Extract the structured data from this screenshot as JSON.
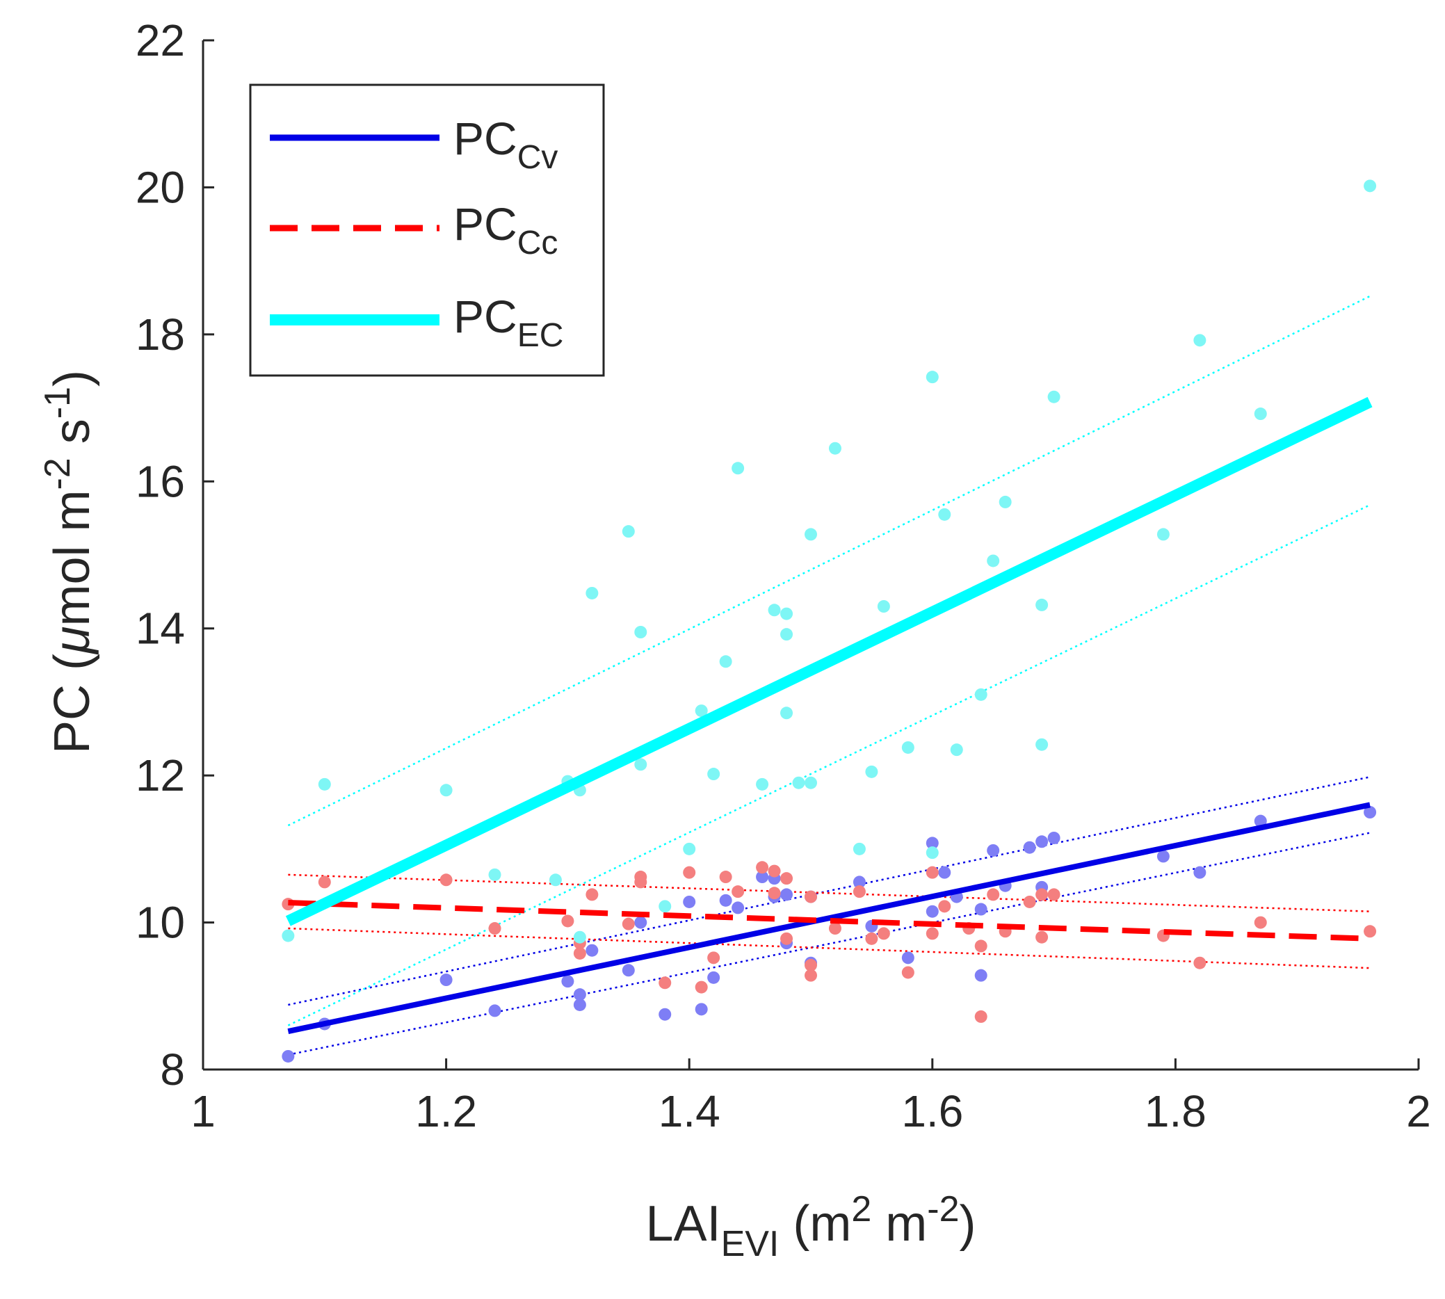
{
  "chart_data": {
    "type": "scatter",
    "xlabel": {
      "main": "LAI",
      "sub": "EVI",
      "rest_a": " (m",
      "sup1": "2",
      "rest_b": " m",
      "sup2": "-2",
      "rest_c": ")"
    },
    "ylabel": {
      "main": "PC (",
      "mu": "μ",
      "rest_a": "mol m",
      "sup1": "-2",
      "rest_b": " s",
      "sup2": "-1",
      "rest_c": ")"
    },
    "xlim": [
      1,
      2
    ],
    "ylim": [
      8,
      22
    ],
    "xticks": [
      "1",
      "1.2",
      "1.4",
      "1.6",
      "1.8",
      "2"
    ],
    "yticks": [
      "8",
      "10",
      "12",
      "14",
      "16",
      "18",
      "20",
      "22"
    ],
    "grid": false,
    "legend_position": "top-left",
    "series": [
      {
        "name": "PC",
        "sub": "Cv",
        "color": "#0000E6",
        "point_color": "#7E7EF5",
        "line_style": "solid",
        "points": [
          [
            1.07,
            8.18
          ],
          [
            1.1,
            8.62
          ],
          [
            1.2,
            9.22
          ],
          [
            1.24,
            8.8
          ],
          [
            1.3,
            9.2
          ],
          [
            1.31,
            9.02
          ],
          [
            1.31,
            8.88
          ],
          [
            1.32,
            9.62
          ],
          [
            1.35,
            9.35
          ],
          [
            1.36,
            10.0
          ],
          [
            1.38,
            8.75
          ],
          [
            1.4,
            10.28
          ],
          [
            1.41,
            8.82
          ],
          [
            1.42,
            9.25
          ],
          [
            1.43,
            10.3
          ],
          [
            1.44,
            10.2
          ],
          [
            1.46,
            10.62
          ],
          [
            1.47,
            10.35
          ],
          [
            1.47,
            10.6
          ],
          [
            1.48,
            9.72
          ],
          [
            1.48,
            10.38
          ],
          [
            1.5,
            9.45
          ],
          [
            1.5,
            10.35
          ],
          [
            1.54,
            10.55
          ],
          [
            1.55,
            9.95
          ],
          [
            1.58,
            9.52
          ],
          [
            1.6,
            11.08
          ],
          [
            1.6,
            10.15
          ],
          [
            1.61,
            10.68
          ],
          [
            1.62,
            10.35
          ],
          [
            1.64,
            10.18
          ],
          [
            1.64,
            9.28
          ],
          [
            1.65,
            10.98
          ],
          [
            1.66,
            10.5
          ],
          [
            1.68,
            11.02
          ],
          [
            1.69,
            11.1
          ],
          [
            1.69,
            10.48
          ],
          [
            1.7,
            11.15
          ],
          [
            1.79,
            10.9
          ],
          [
            1.82,
            10.68
          ],
          [
            1.87,
            11.38
          ],
          [
            1.96,
            11.5
          ]
        ],
        "fit": [
          [
            1.07,
            8.52
          ],
          [
            1.96,
            11.6
          ]
        ],
        "ci_upper": [
          [
            1.07,
            8.88
          ],
          [
            1.96,
            11.98
          ]
        ],
        "ci_lower": [
          [
            1.07,
            8.2
          ],
          [
            1.96,
            11.22
          ]
        ]
      },
      {
        "name": "PC",
        "sub": "Cc",
        "color": "#FF0000",
        "point_color": "#F47F7F",
        "line_style": "dashed",
        "points": [
          [
            1.07,
            10.25
          ],
          [
            1.1,
            10.55
          ],
          [
            1.2,
            10.58
          ],
          [
            1.24,
            9.92
          ],
          [
            1.3,
            10.02
          ],
          [
            1.31,
            9.72
          ],
          [
            1.31,
            9.58
          ],
          [
            1.32,
            10.38
          ],
          [
            1.35,
            9.98
          ],
          [
            1.36,
            10.62
          ],
          [
            1.36,
            10.55
          ],
          [
            1.38,
            9.18
          ],
          [
            1.4,
            10.68
          ],
          [
            1.41,
            9.12
          ],
          [
            1.42,
            9.52
          ],
          [
            1.43,
            10.62
          ],
          [
            1.44,
            10.42
          ],
          [
            1.46,
            10.75
          ],
          [
            1.47,
            10.7
          ],
          [
            1.47,
            10.4
          ],
          [
            1.48,
            9.78
          ],
          [
            1.48,
            10.6
          ],
          [
            1.5,
            9.28
          ],
          [
            1.5,
            9.42
          ],
          [
            1.5,
            10.35
          ],
          [
            1.52,
            9.92
          ],
          [
            1.54,
            10.42
          ],
          [
            1.55,
            9.78
          ],
          [
            1.56,
            9.85
          ],
          [
            1.58,
            9.32
          ],
          [
            1.6,
            10.68
          ],
          [
            1.6,
            9.85
          ],
          [
            1.61,
            10.22
          ],
          [
            1.63,
            9.92
          ],
          [
            1.64,
            9.68
          ],
          [
            1.64,
            8.72
          ],
          [
            1.65,
            10.38
          ],
          [
            1.66,
            9.88
          ],
          [
            1.68,
            10.28
          ],
          [
            1.69,
            9.8
          ],
          [
            1.69,
            10.38
          ],
          [
            1.7,
            10.38
          ],
          [
            1.79,
            9.82
          ],
          [
            1.82,
            9.45
          ],
          [
            1.87,
            10.0
          ],
          [
            1.96,
            9.88
          ]
        ],
        "fit": [
          [
            1.07,
            10.27
          ],
          [
            1.96,
            9.78
          ]
        ],
        "ci_upper": [
          [
            1.07,
            10.65
          ],
          [
            1.96,
            10.15
          ]
        ],
        "ci_lower": [
          [
            1.07,
            9.92
          ],
          [
            1.96,
            9.38
          ]
        ]
      },
      {
        "name": "PC",
        "sub": "EC",
        "color": "#00FFFF",
        "point_color": "#7EF6F5",
        "line_style": "solid",
        "points": [
          [
            1.07,
            9.82
          ],
          [
            1.1,
            11.88
          ],
          [
            1.2,
            11.8
          ],
          [
            1.24,
            10.65
          ],
          [
            1.29,
            10.58
          ],
          [
            1.3,
            11.92
          ],
          [
            1.31,
            11.8
          ],
          [
            1.31,
            9.8
          ],
          [
            1.32,
            14.48
          ],
          [
            1.35,
            15.32
          ],
          [
            1.36,
            13.95
          ],
          [
            1.36,
            12.15
          ],
          [
            1.38,
            10.22
          ],
          [
            1.4,
            11.0
          ],
          [
            1.41,
            12.88
          ],
          [
            1.42,
            12.02
          ],
          [
            1.43,
            13.55
          ],
          [
            1.44,
            16.18
          ],
          [
            1.46,
            11.88
          ],
          [
            1.47,
            14.25
          ],
          [
            1.48,
            14.2
          ],
          [
            1.48,
            13.92
          ],
          [
            1.48,
            12.85
          ],
          [
            1.49,
            11.9
          ],
          [
            1.5,
            11.9
          ],
          [
            1.5,
            15.28
          ],
          [
            1.52,
            16.45
          ],
          [
            1.54,
            11.0
          ],
          [
            1.55,
            12.05
          ],
          [
            1.56,
            14.3
          ],
          [
            1.58,
            12.38
          ],
          [
            1.6,
            17.42
          ],
          [
            1.6,
            10.95
          ],
          [
            1.61,
            15.55
          ],
          [
            1.62,
            12.35
          ],
          [
            1.64,
            13.1
          ],
          [
            1.65,
            14.92
          ],
          [
            1.66,
            15.72
          ],
          [
            1.69,
            14.32
          ],
          [
            1.69,
            12.42
          ],
          [
            1.7,
            17.15
          ],
          [
            1.79,
            15.28
          ],
          [
            1.82,
            17.92
          ],
          [
            1.87,
            16.92
          ],
          [
            1.96,
            20.02
          ]
        ],
        "fit": [
          [
            1.07,
            10.02
          ],
          [
            1.96,
            17.08
          ]
        ],
        "ci_upper": [
          [
            1.07,
            11.32
          ],
          [
            1.96,
            18.52
          ]
        ],
        "ci_lower": [
          [
            1.07,
            8.6
          ],
          [
            1.96,
            15.68
          ]
        ]
      }
    ]
  },
  "colors": {
    "axis": "#262626",
    "background": "#ffffff"
  }
}
